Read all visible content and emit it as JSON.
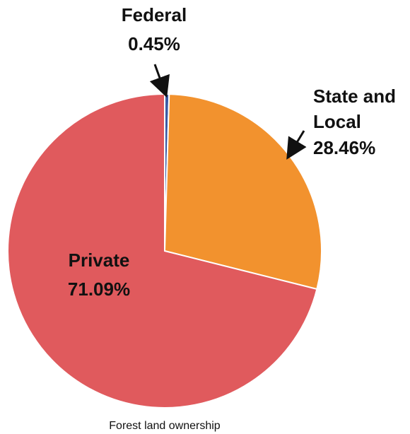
{
  "chart_data": {
    "type": "pie",
    "title": "",
    "caption": "Forest land ownership",
    "slices": [
      {
        "label": "Federal",
        "value": 0.45,
        "value_label": "0.45%",
        "color": "#3b5ba5"
      },
      {
        "label_lines": [
          "State and",
          "Local"
        ],
        "value": 28.46,
        "value_label": "28.46%",
        "color": "#f2922e"
      },
      {
        "label": "Private",
        "value": 71.09,
        "value_label": "71.09%",
        "color": "#e05a5d"
      }
    ],
    "legend": "none"
  }
}
